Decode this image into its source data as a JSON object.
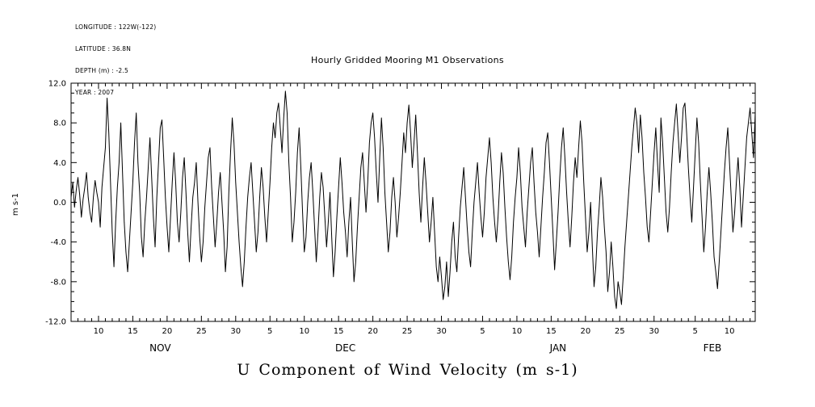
{
  "meta": {
    "lines": [
      "LONGITUDE : 122W(-122)",
      "LATITUDE : 36.8N",
      "DEPTH (m) : -2.5",
      "YEAR : 2007"
    ]
  },
  "chart_data": {
    "type": "line",
    "title": "Hourly Gridded Mooring M1 Observations",
    "xlabel": "U Component of Wind Velocity (m s-1)",
    "ylabel": "m s-1",
    "ylim": [
      -12,
      12
    ],
    "y_ticks": [
      {
        "v": 12,
        "label": "12.0"
      },
      {
        "v": 8,
        "label": "8.0"
      },
      {
        "v": 4,
        "label": "4.0"
      },
      {
        "v": 0,
        "label": "0.0"
      },
      {
        "v": -4,
        "label": "-4.0"
      },
      {
        "v": -8,
        "label": "-8.0"
      },
      {
        "v": -12,
        "label": "-12.0"
      }
    ],
    "x_start_date": "2007-11-06",
    "samples_per_day": 4,
    "x_ticks": [
      {
        "day": 4,
        "label": "10"
      },
      {
        "day": 9,
        "label": "15"
      },
      {
        "day": 14,
        "label": "20"
      },
      {
        "day": 19,
        "label": "25"
      },
      {
        "day": 24,
        "label": "30"
      },
      {
        "day": 29,
        "label": "5"
      },
      {
        "day": 34,
        "label": "10"
      },
      {
        "day": 39,
        "label": "15"
      },
      {
        "day": 44,
        "label": "20"
      },
      {
        "day": 49,
        "label": "25"
      },
      {
        "day": 54,
        "label": "30"
      },
      {
        "day": 60,
        "label": "5"
      },
      {
        "day": 65,
        "label": "10"
      },
      {
        "day": 70,
        "label": "15"
      },
      {
        "day": 75,
        "label": "20"
      },
      {
        "day": 80,
        "label": "25"
      },
      {
        "day": 85,
        "label": "30"
      },
      {
        "day": 91,
        "label": "5"
      },
      {
        "day": 96,
        "label": "10"
      }
    ],
    "month_labels": [
      {
        "day": 13,
        "label": "NOV"
      },
      {
        "day": 40,
        "label": "DEC"
      },
      {
        "day": 71,
        "label": "JAN"
      },
      {
        "day": 93.5,
        "label": "FEB"
      }
    ],
    "values": [
      0.5,
      2.0,
      -0.5,
      1.2,
      2.5,
      0.8,
      -1.5,
      0.3,
      1.5,
      3.0,
      0.5,
      -1.0,
      -2.0,
      0.5,
      2.2,
      1.0,
      0.0,
      -2.5,
      1.5,
      3.5,
      5.5,
      10.5,
      7.0,
      2.0,
      -3.0,
      -6.5,
      -2.0,
      1.5,
      4.0,
      8.0,
      3.0,
      -2.0,
      -5.0,
      -7.0,
      -4.0,
      -1.0,
      2.0,
      6.0,
      9.0,
      4.0,
      1.0,
      -3.5,
      -5.5,
      -2.0,
      0.5,
      3.5,
      6.5,
      2.5,
      -1.5,
      -4.5,
      0.5,
      4.0,
      7.5,
      8.3,
      4.5,
      0.5,
      -2.5,
      -5.0,
      -1.5,
      2.0,
      5.0,
      2.0,
      -2.0,
      -4.0,
      -1.0,
      2.5,
      4.5,
      1.0,
      -3.0,
      -6.0,
      -2.5,
      0.5,
      2.0,
      4.0,
      0.0,
      -3.5,
      -6.0,
      -4.0,
      -0.5,
      2.0,
      4.5,
      5.5,
      1.5,
      -1.5,
      -4.5,
      -2.0,
      1.0,
      3.0,
      0.0,
      -3.0,
      -7.0,
      -4.5,
      1.0,
      5.0,
      8.5,
      6.0,
      2.0,
      -1.0,
      -4.0,
      -6.5,
      -8.5,
      -6.0,
      -2.5,
      0.5,
      2.5,
      4.0,
      1.0,
      -2.0,
      -5.0,
      -3.0,
      0.5,
      3.5,
      1.5,
      -1.5,
      -4.0,
      -1.0,
      2.0,
      5.5,
      8.0,
      6.5,
      9.0,
      10.0,
      7.5,
      5.0,
      8.5,
      11.2,
      9.0,
      4.0,
      0.5,
      -4.0,
      -2.0,
      1.0,
      5.0,
      7.5,
      3.5,
      -1.0,
      -5.0,
      -3.5,
      0.0,
      2.5,
      4.0,
      1.0,
      -2.5,
      -6.0,
      -3.0,
      0.5,
      3.0,
      1.5,
      -1.5,
      -4.5,
      -2.0,
      1.0,
      -3.5,
      -7.5,
      -5.0,
      -1.5,
      1.5,
      4.5,
      2.0,
      -1.0,
      -3.0,
      -5.5,
      -2.0,
      0.5,
      -4.0,
      -8.0,
      -6.0,
      -2.5,
      0.5,
      3.5,
      5.0,
      2.0,
      -1.0,
      2.0,
      6.0,
      8.0,
      9.0,
      6.5,
      3.0,
      0.0,
      4.5,
      8.5,
      5.5,
      1.0,
      -2.0,
      -5.0,
      -3.0,
      0.5,
      2.5,
      0.0,
      -3.5,
      -1.5,
      1.0,
      4.0,
      7.0,
      5.0,
      8.0,
      9.8,
      7.0,
      3.5,
      6.0,
      8.8,
      5.0,
      1.0,
      -2.0,
      1.5,
      4.5,
      2.0,
      -1.0,
      -4.0,
      -2.0,
      0.5,
      -3.0,
      -6.5,
      -8.0,
      -5.5,
      -7.5,
      -9.8,
      -8.5,
      -6.0,
      -9.5,
      -7.0,
      -4.0,
      -2.0,
      -5.5,
      -7.0,
      -3.5,
      -0.5,
      1.5,
      3.5,
      0.5,
      -2.5,
      -5.0,
      -6.5,
      -3.0,
      0.0,
      2.0,
      4.0,
      1.0,
      -1.5,
      -3.5,
      -1.0,
      2.5,
      4.5,
      6.5,
      4.0,
      0.5,
      -2.0,
      -4.0,
      -1.5,
      2.0,
      5.0,
      3.0,
      -0.5,
      -3.5,
      -6.0,
      -7.8,
      -5.5,
      -2.0,
      0.5,
      2.5,
      5.5,
      3.0,
      -0.5,
      -2.5,
      -4.5,
      -1.0,
      1.5,
      4.0,
      5.5,
      2.0,
      -1.0,
      -3.0,
      -5.5,
      -2.5,
      0.5,
      3.0,
      6.0,
      7.0,
      4.0,
      0.5,
      -3.0,
      -6.8,
      -4.0,
      -1.0,
      2.5,
      5.5,
      7.5,
      4.5,
      1.0,
      -2.0,
      -4.5,
      -1.5,
      2.0,
      4.5,
      2.5,
      5.5,
      8.2,
      6.0,
      2.0,
      -1.5,
      -5.0,
      -3.0,
      0.0,
      -4.5,
      -8.5,
      -6.5,
      -3.0,
      -0.5,
      2.5,
      0.5,
      -2.5,
      -5.0,
      -9.0,
      -7.0,
      -4.0,
      -6.5,
      -9.5,
      -10.7,
      -8.0,
      -9.0,
      -10.3,
      -7.5,
      -4.5,
      -2.0,
      0.5,
      3.0,
      5.5,
      7.5,
      9.5,
      8.0,
      5.0,
      8.8,
      6.5,
      3.0,
      0.5,
      -2.5,
      -4.0,
      -1.0,
      2.0,
      5.0,
      7.5,
      4.0,
      1.0,
      8.5,
      6.0,
      2.5,
      -1.0,
      -3.0,
      -0.5,
      3.0,
      6.0,
      8.0,
      9.9,
      7.0,
      4.0,
      6.5,
      9.5,
      10.0,
      7.0,
      3.5,
      0.5,
      -2.0,
      1.5,
      5.0,
      8.5,
      6.0,
      2.0,
      -1.5,
      -5.0,
      -2.5,
      1.0,
      3.5,
      1.0,
      -2.0,
      -5.5,
      -7.0,
      -8.7,
      -6.0,
      -3.0,
      0.0,
      3.0,
      5.5,
      7.5,
      4.0,
      0.5,
      -3.0,
      -1.0,
      2.0,
      4.5,
      1.5,
      -2.5,
      0.5,
      3.5,
      6.5,
      8.0,
      9.5,
      7.0,
      4.5,
      9.0
    ],
    "line_color": "#000000",
    "background": "#ffffff",
    "grid": false,
    "legend": "none"
  }
}
